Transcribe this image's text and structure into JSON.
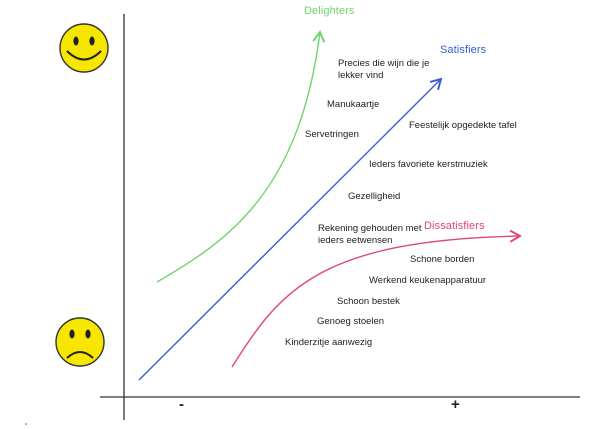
{
  "curves": {
    "delighters": {
      "label": "Delighters",
      "color": "#6fd46f"
    },
    "satisfiers": {
      "label": "Satisfiers",
      "color": "#3b5bd6"
    },
    "dissatisfiers": {
      "label": "Dissatisfiers",
      "color": "#e0457b"
    }
  },
  "axis": {
    "minus": "-",
    "plus": "+"
  },
  "items": {
    "precies": [
      "Precies die wijn die je",
      "lekker vind"
    ],
    "manukaartje": "Manukaartje",
    "servetringen": "Servetringen",
    "feestelijk": "Feestelijk opgedekte tafel",
    "kerstmuziek": "Ieders favoriete kerstmuziek",
    "gezelligheid": "Gezelligheid",
    "rekening": [
      "Rekening gehouden met",
      "ieders eetwensen"
    ],
    "schone_borden": "Schone borden",
    "keukenapparatuur": "Werkend keukenapparatuur",
    "schoon_bestek": "Schoon bestek",
    "genoeg_stoelen": "Genoeg stoelen",
    "kinderzitje": "Kinderzitje aanwezig"
  },
  "icons": {
    "happy": "smiley-happy-icon",
    "sad": "smiley-sad-icon"
  },
  "colors": {
    "axis": "#333333",
    "smiley_fill": "#f7e600",
    "smiley_stroke": "#333333"
  }
}
